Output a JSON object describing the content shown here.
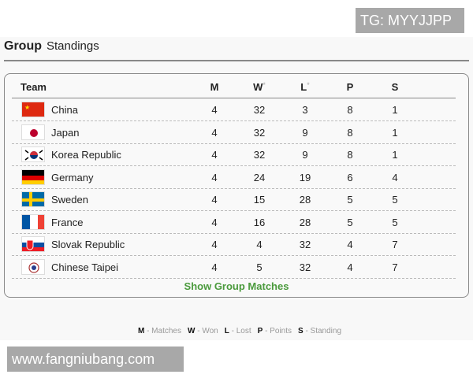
{
  "watermarks": {
    "top": "TG: MYYJJPP",
    "bottom": "www.fangniubang.com"
  },
  "title": {
    "bold": "Group",
    "rest": "Standings"
  },
  "table": {
    "headers": {
      "team": "Team",
      "m": "M",
      "w": "W",
      "l": "L",
      "p": "P",
      "s": "S",
      "star": "*"
    },
    "rows": [
      {
        "team": "China",
        "flag": "china-flag",
        "m": "4",
        "w": "32",
        "l": "3",
        "p": "8",
        "s": "1"
      },
      {
        "team": "Japan",
        "flag": "japan-flag",
        "m": "4",
        "w": "32",
        "l": "9",
        "p": "8",
        "s": "1"
      },
      {
        "team": "Korea Republic",
        "flag": "korea-flag",
        "m": "4",
        "w": "32",
        "l": "9",
        "p": "8",
        "s": "1"
      },
      {
        "team": "Germany",
        "flag": "germany-flag",
        "m": "4",
        "w": "24",
        "l": "19",
        "p": "6",
        "s": "4"
      },
      {
        "team": "Sweden",
        "flag": "sweden-flag",
        "m": "4",
        "w": "15",
        "l": "28",
        "p": "5",
        "s": "5"
      },
      {
        "team": "France",
        "flag": "france-flag",
        "m": "4",
        "w": "16",
        "l": "28",
        "p": "5",
        "s": "5"
      },
      {
        "team": "Slovak Republic",
        "flag": "slovakia-flag",
        "m": "4",
        "w": "4",
        "l": "32",
        "p": "4",
        "s": "7"
      },
      {
        "team": "Chinese Taipei",
        "flag": "chinese-taipei-flag",
        "m": "4",
        "w": "5",
        "l": "32",
        "p": "4",
        "s": "7"
      }
    ]
  },
  "show_matches": "Show Group Matches",
  "legend": [
    {
      "k": "M",
      "v": "- Matches"
    },
    {
      "k": "W",
      "v": "- Won"
    },
    {
      "k": "L",
      "v": "- Lost"
    },
    {
      "k": "P",
      "v": "- Points"
    },
    {
      "k": "S",
      "v": "- Standing"
    }
  ],
  "colors": {
    "accent": "#4a9a3c"
  }
}
